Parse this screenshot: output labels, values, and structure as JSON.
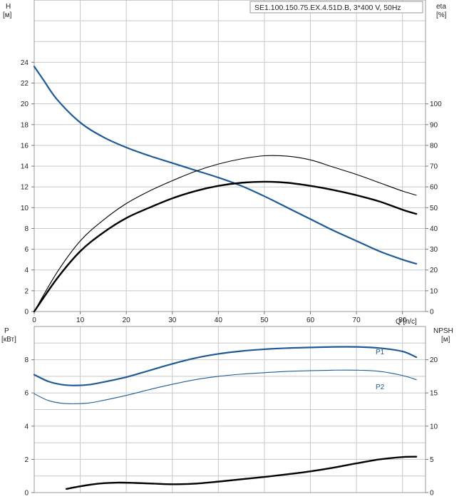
{
  "chart_data": [
    {
      "type": "line",
      "title": "SE1.100.150.75.EX.4.51D.B, 3*400 V, 50Hz",
      "xlabel": "Q [л/с]",
      "ylabel": "H",
      "ylabel_unit": "[м]",
      "y2label": "eta",
      "y2label_unit": "[%]",
      "xlim": [
        0,
        85
      ],
      "ylim": [
        0,
        30
      ],
      "y2lim": [
        0,
        150
      ],
      "x_ticks": [
        0,
        10,
        20,
        30,
        40,
        50,
        60,
        70,
        80
      ],
      "y_ticks": [
        0,
        2,
        4,
        6,
        8,
        10,
        12,
        14,
        16,
        18,
        20,
        22,
        24
      ],
      "y2_ticks": [
        0,
        10,
        20,
        30,
        40,
        50,
        60,
        70,
        80,
        90,
        100
      ],
      "grid": true,
      "series": [
        {
          "axis": "left",
          "color": "#1f5a96",
          "width": 2.2,
          "x": [
            0,
            2,
            5,
            10,
            15,
            20,
            25,
            30,
            35,
            40,
            45,
            50,
            55,
            60,
            65,
            70,
            75,
            80,
            83
          ],
          "y": [
            23.6,
            22.3,
            20.4,
            18.2,
            16.8,
            15.8,
            15.0,
            14.3,
            13.6,
            12.9,
            12.1,
            11.1,
            10.0,
            8.9,
            7.8,
            6.8,
            5.8,
            5.0,
            4.6
          ]
        },
        {
          "axis": "right",
          "color": "#000000",
          "width": 1.1,
          "x": [
            0,
            5,
            10,
            15,
            20,
            25,
            30,
            35,
            40,
            45,
            50,
            55,
            60,
            65,
            70,
            75,
            80,
            83
          ],
          "y": [
            0,
            19,
            34,
            44,
            52,
            58,
            63,
            67.5,
            71,
            73.5,
            75,
            74.8,
            73,
            69.5,
            66,
            62,
            58,
            56
          ]
        },
        {
          "axis": "right",
          "color": "#000000",
          "width": 2.4,
          "x": [
            0,
            5,
            10,
            15,
            20,
            25,
            30,
            35,
            40,
            45,
            50,
            55,
            60,
            65,
            70,
            75,
            80,
            83
          ],
          "y": [
            0,
            16,
            29,
            38,
            45,
            50,
            54.5,
            58,
            60.5,
            62,
            62.5,
            62,
            60.5,
            58.5,
            56,
            53,
            49,
            47
          ]
        }
      ]
    },
    {
      "type": "line",
      "ylabel": "P",
      "ylabel_unit": "[кВт]",
      "y2label": "NPSH",
      "y2label_unit": "[м]",
      "xlim": [
        0,
        85
      ],
      "ylim": [
        0,
        10
      ],
      "y2lim": [
        0,
        25
      ],
      "y_ticks": [
        0,
        2,
        4,
        6,
        8
      ],
      "y2_ticks": [
        0,
        5,
        10,
        15,
        20
      ],
      "grid": true,
      "series": [
        {
          "name": "P1",
          "axis": "left",
          "color": "#1f5a96",
          "width": 2.2,
          "x": [
            0,
            3,
            6,
            9,
            12,
            15,
            20,
            25,
            30,
            35,
            40,
            45,
            50,
            55,
            60,
            65,
            70,
            75,
            80,
            83
          ],
          "y": [
            7.1,
            6.7,
            6.5,
            6.45,
            6.5,
            6.65,
            6.95,
            7.35,
            7.75,
            8.1,
            8.35,
            8.52,
            8.63,
            8.7,
            8.74,
            8.77,
            8.77,
            8.7,
            8.5,
            8.15
          ]
        },
        {
          "name": "P2",
          "axis": "left",
          "color": "#1f5a96",
          "width": 1.1,
          "x": [
            0,
            3,
            6,
            9,
            12,
            15,
            20,
            25,
            30,
            35,
            40,
            45,
            50,
            55,
            60,
            65,
            70,
            75,
            80,
            83
          ],
          "y": [
            5.95,
            5.55,
            5.38,
            5.35,
            5.4,
            5.55,
            5.85,
            6.2,
            6.52,
            6.8,
            7.0,
            7.13,
            7.22,
            7.3,
            7.34,
            7.37,
            7.37,
            7.3,
            7.05,
            6.8
          ]
        },
        {
          "axis": "right",
          "color": "#000000",
          "width": 2.4,
          "x": [
            7,
            10,
            14,
            18,
            22,
            26,
            30,
            35,
            40,
            45,
            50,
            55,
            60,
            65,
            70,
            75,
            80,
            83
          ],
          "y": [
            0.55,
            0.95,
            1.35,
            1.5,
            1.45,
            1.35,
            1.25,
            1.35,
            1.65,
            2.0,
            2.35,
            2.75,
            3.2,
            3.75,
            4.4,
            5.0,
            5.35,
            5.4
          ]
        }
      ]
    }
  ]
}
